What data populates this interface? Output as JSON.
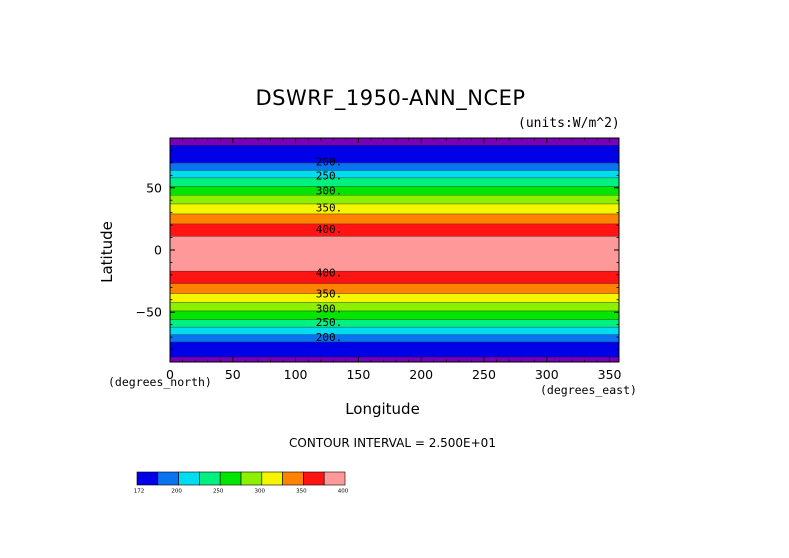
{
  "chart_data": {
    "type": "heatmap",
    "title": "DSWRF_1950-ANN_NCEP",
    "units_label": "(units:W/m^2)",
    "xlabel": "Longitude",
    "ylabel": "Latitude",
    "x_units_label": "(degrees_east)",
    "y_units_label": "(degrees_north)",
    "xlim": [
      0,
      357.5
    ],
    "ylim": [
      -90,
      90
    ],
    "x_ticks": [
      0,
      50,
      100,
      150,
      200,
      250,
      300,
      350
    ],
    "y_ticks": [
      50,
      0,
      -50
    ],
    "y_tick_labels": [
      "50",
      "0",
      "−50"
    ],
    "contour_interval_text": "CONTOUR INTERVAL = 2.500E+01",
    "bands": [
      {
        "lat_min": 84,
        "lat_max": 90,
        "color": "#7a00b8"
      },
      {
        "lat_min": 70,
        "lat_max": 84,
        "color": "#0000e8"
      },
      {
        "lat_min": 64,
        "lat_max": 70,
        "color": "#0a73f0"
      },
      {
        "lat_min": 58,
        "lat_max": 64,
        "color": "#00dcf0"
      },
      {
        "lat_min": 51,
        "lat_max": 58,
        "color": "#00f082"
      },
      {
        "lat_min": 44,
        "lat_max": 51,
        "color": "#00e600"
      },
      {
        "lat_min": 37,
        "lat_max": 44,
        "color": "#8cf000"
      },
      {
        "lat_min": 29,
        "lat_max": 37,
        "color": "#f5f500"
      },
      {
        "lat_min": 21,
        "lat_max": 29,
        "color": "#ff8200"
      },
      {
        "lat_min": 11,
        "lat_max": 21,
        "color": "#ff1414"
      },
      {
        "lat_min": -17,
        "lat_max": 11,
        "color": "#ff9999"
      },
      {
        "lat_min": -27,
        "lat_max": -17,
        "color": "#ff1414"
      },
      {
        "lat_min": -35,
        "lat_max": -27,
        "color": "#ff8200"
      },
      {
        "lat_min": -42,
        "lat_max": -35,
        "color": "#f5f500"
      },
      {
        "lat_min": -49,
        "lat_max": -42,
        "color": "#8cf000"
      },
      {
        "lat_min": -56,
        "lat_max": -49,
        "color": "#00e600"
      },
      {
        "lat_min": -62,
        "lat_max": -56,
        "color": "#00f082"
      },
      {
        "lat_min": -68,
        "lat_max": -62,
        "color": "#00dcf0"
      },
      {
        "lat_min": -74,
        "lat_max": -68,
        "color": "#0a73f0"
      },
      {
        "lat_min": -86,
        "lat_max": -74,
        "color": "#0000e8"
      },
      {
        "lat_min": -90,
        "lat_max": -86,
        "color": "#7a00b8"
      }
    ],
    "contour_labels": [
      {
        "text": "200.",
        "lat": 71
      },
      {
        "text": "250.",
        "lat": 60
      },
      {
        "text": "300.",
        "lat": 48
      },
      {
        "text": "350.",
        "lat": 34
      },
      {
        "text": "400.",
        "lat": 17
      },
      {
        "text": "400.",
        "lat": -18
      },
      {
        "text": "350.",
        "lat": -35
      },
      {
        "text": "300.",
        "lat": -47
      },
      {
        "text": "250.",
        "lat": -58
      },
      {
        "text": "200.",
        "lat": -70
      }
    ],
    "colorbar": {
      "colors": [
        "#0000e8",
        "#0a73f0",
        "#00dcf0",
        "#00f082",
        "#00e600",
        "#8cf000",
        "#f5f500",
        "#ff8200",
        "#ff1414",
        "#ff9999"
      ],
      "labels": [
        {
          "text": "172",
          "pos": 0
        },
        {
          "text": "200",
          "pos": 1
        },
        {
          "text": "250",
          "pos": 3
        },
        {
          "text": "300",
          "pos": 5
        },
        {
          "text": "350",
          "pos": 7
        },
        {
          "text": "400",
          "pos": 9
        }
      ]
    }
  }
}
